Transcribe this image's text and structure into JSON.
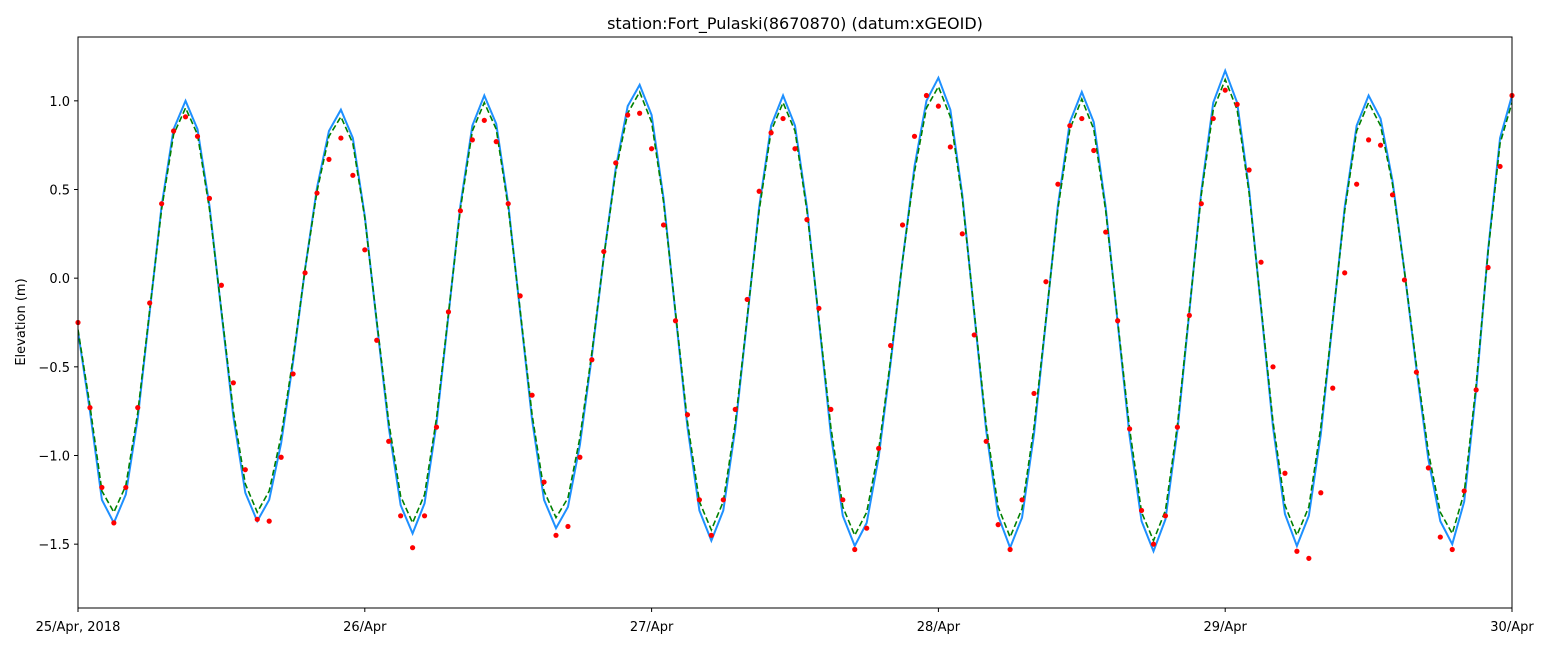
{
  "chart_data": {
    "type": "line",
    "title": "station:Fort_Pulaski(8670870) (datum:xGEOID)",
    "ylabel": "Elevation (m)",
    "xlim": [
      0,
      120
    ],
    "xticks": [
      {
        "value": 0,
        "label": "25/Apr, 2018"
      },
      {
        "value": 24,
        "label": "26/Apr"
      },
      {
        "value": 48,
        "label": "27/Apr"
      },
      {
        "value": 72,
        "label": "28/Apr"
      },
      {
        "value": 96,
        "label": "29/Apr"
      },
      {
        "value": 120,
        "label": "30/Apr"
      }
    ],
    "ylim": [
      -1.86,
      1.36
    ],
    "yticks": [
      {
        "value": -1.5,
        "label": "−1.5"
      },
      {
        "value": -1,
        "label": "−1.0"
      },
      {
        "value": -0.5,
        "label": "−0.5"
      },
      {
        "value": 0,
        "label": "0.0"
      },
      0.5,
      {
        "value": 1,
        "label": "1.0"
      }
    ],
    "grid": false,
    "x": [
      0,
      1,
      2,
      3,
      4,
      5,
      6,
      7,
      8,
      9,
      10,
      11,
      12,
      13,
      14,
      15,
      16,
      17,
      18,
      19,
      20,
      21,
      22,
      23,
      24,
      25,
      26,
      27,
      28,
      29,
      30,
      31,
      32,
      33,
      34,
      35,
      36,
      37,
      38,
      39,
      40,
      41,
      42,
      43,
      44,
      45,
      46,
      47,
      48,
      49,
      50,
      51,
      52,
      53,
      54,
      55,
      56,
      57,
      58,
      59,
      60,
      61,
      62,
      63,
      64,
      65,
      66,
      67,
      68,
      69,
      70,
      71,
      72,
      73,
      74,
      75,
      76,
      77,
      78,
      79,
      80,
      81,
      82,
      83,
      84,
      85,
      86,
      87,
      88,
      89,
      90,
      91,
      92,
      93,
      94,
      95,
      96,
      97,
      98,
      99,
      100,
      101,
      102,
      103,
      104,
      105,
      106,
      107,
      108,
      109,
      110,
      111,
      112,
      113,
      114,
      115,
      116,
      117,
      118,
      119,
      120
    ],
    "series": [
      {
        "color": "#1e90ff",
        "line_style": "solid",
        "values": [
          -0.3,
          -0.75,
          -1.25,
          -1.38,
          -1.22,
          -0.79,
          -0.19,
          0.41,
          0.84,
          1.0,
          0.84,
          0.41,
          -0.19,
          -0.78,
          -1.21,
          -1.37,
          -1.25,
          -0.93,
          -0.47,
          0.05,
          0.51,
          0.83,
          0.95,
          0.79,
          0.35,
          -0.25,
          -0.84,
          -1.28,
          -1.44,
          -1.27,
          -0.82,
          -0.21,
          0.41,
          0.86,
          1.03,
          0.87,
          0.42,
          -0.19,
          -0.8,
          -1.25,
          -1.41,
          -1.29,
          -0.94,
          -0.44,
          0.12,
          0.62,
          0.97,
          1.09,
          0.92,
          0.45,
          -0.2,
          -0.84,
          -1.31,
          -1.48,
          -1.31,
          -0.85,
          -0.23,
          0.4,
          0.86,
          1.03,
          0.86,
          0.4,
          -0.24,
          -0.88,
          -1.34,
          -1.51,
          -1.38,
          -1.01,
          -0.48,
          0.1,
          0.63,
          1.0,
          1.13,
          0.95,
          0.47,
          -0.2,
          -0.86,
          -1.34,
          -1.52,
          -1.35,
          -0.88,
          -0.24,
          0.41,
          0.88,
          1.05,
          0.88,
          0.4,
          -0.25,
          -0.89,
          -1.37,
          -1.54,
          -1.36,
          -0.86,
          -0.19,
          0.49,
          0.99,
          1.17,
          0.99,
          0.5,
          -0.17,
          -0.84,
          -1.33,
          -1.51,
          -1.34,
          -0.88,
          -0.24,
          0.4,
          0.86,
          1.03,
          0.9,
          0.55,
          0.04,
          -0.51,
          -1.02,
          -1.37,
          -1.5,
          -1.26,
          -0.63,
          0.16,
          0.79,
          1.03
        ]
      },
      {
        "color": "#008000",
        "line_style": "dashed",
        "values": [
          -0.29,
          -0.72,
          -1.2,
          -1.32,
          -1.17,
          -0.76,
          -0.18,
          0.39,
          0.81,
          0.96,
          0.81,
          0.39,
          -0.18,
          -0.75,
          -1.16,
          -1.32,
          -1.2,
          -0.89,
          -0.45,
          0.05,
          0.49,
          0.8,
          0.91,
          0.76,
          0.34,
          -0.24,
          -0.81,
          -1.23,
          -1.38,
          -1.22,
          -0.79,
          -0.2,
          0.39,
          0.83,
          0.99,
          0.84,
          0.4,
          -0.18,
          -0.77,
          -1.2,
          -1.35,
          -1.24,
          -0.9,
          -0.42,
          0.12,
          0.6,
          0.93,
          1.05,
          0.88,
          0.43,
          -0.19,
          -0.81,
          -1.26,
          -1.42,
          -1.26,
          -0.82,
          -0.22,
          0.38,
          0.83,
          0.99,
          0.83,
          0.38,
          -0.23,
          -0.84,
          -1.29,
          -1.45,
          -1.32,
          -0.97,
          -0.46,
          0.1,
          0.6,
          0.96,
          1.08,
          0.91,
          0.45,
          -0.19,
          -0.83,
          -1.29,
          -1.46,
          -1.3,
          -0.84,
          -0.23,
          0.39,
          0.84,
          1.01,
          0.84,
          0.38,
          -0.24,
          -0.85,
          -1.32,
          -1.48,
          -1.31,
          -0.83,
          -0.18,
          0.47,
          0.95,
          1.12,
          0.95,
          0.48,
          -0.16,
          -0.81,
          -1.28,
          -1.45,
          -1.29,
          -0.84,
          -0.23,
          0.38,
          0.83,
          0.99,
          0.86,
          0.53,
          0.04,
          -0.49,
          -0.98,
          -1.32,
          -1.44,
          -1.21,
          -0.6,
          0.15,
          0.76,
          0.99
        ]
      },
      {
        "color": "#ff0000",
        "line_style": "none",
        "marker": "dot",
        "values": [
          -0.25,
          -0.73,
          -1.18,
          -1.38,
          -1.18,
          -0.73,
          -0.14,
          0.42,
          0.83,
          0.91,
          0.8,
          0.45,
          -0.04,
          -0.59,
          -1.08,
          -1.36,
          -1.37,
          -1.01,
          -0.54,
          0.03,
          0.48,
          0.67,
          0.79,
          0.58,
          0.16,
          -0.35,
          -0.92,
          -1.34,
          -1.52,
          -1.34,
          -0.84,
          -0.19,
          0.38,
          0.78,
          0.89,
          0.77,
          0.42,
          -0.1,
          -0.66,
          -1.15,
          -1.45,
          -1.4,
          -1.01,
          -0.46,
          0.15,
          0.65,
          0.92,
          0.93,
          0.73,
          0.3,
          -0.24,
          -0.77,
          -1.25,
          -1.45,
          -1.25,
          -0.74,
          -0.12,
          0.49,
          0.82,
          0.9,
          0.73,
          0.33,
          -0.17,
          -0.74,
          -1.25,
          -1.53,
          -1.41,
          -0.96,
          -0.38,
          0.3,
          0.8,
          1.03,
          0.97,
          0.74,
          0.25,
          -0.32,
          -0.92,
          -1.39,
          -1.53,
          -1.25,
          -0.65,
          -0.02,
          0.53,
          0.86,
          0.9,
          0.72,
          0.26,
          -0.24,
          -0.85,
          -1.31,
          -1.5,
          -1.34,
          -0.84,
          -0.21,
          0.42,
          0.9,
          1.06,
          0.98,
          0.61,
          0.09,
          -0.5,
          -1.1,
          -1.54,
          -1.58,
          -1.21,
          -0.62,
          0.03,
          0.53,
          0.78,
          0.75,
          0.47,
          -0.01,
          -0.53,
          -1.07,
          -1.46,
          -1.53,
          -1.2,
          -0.63,
          0.06,
          0.63,
          1.03
        ]
      }
    ]
  }
}
